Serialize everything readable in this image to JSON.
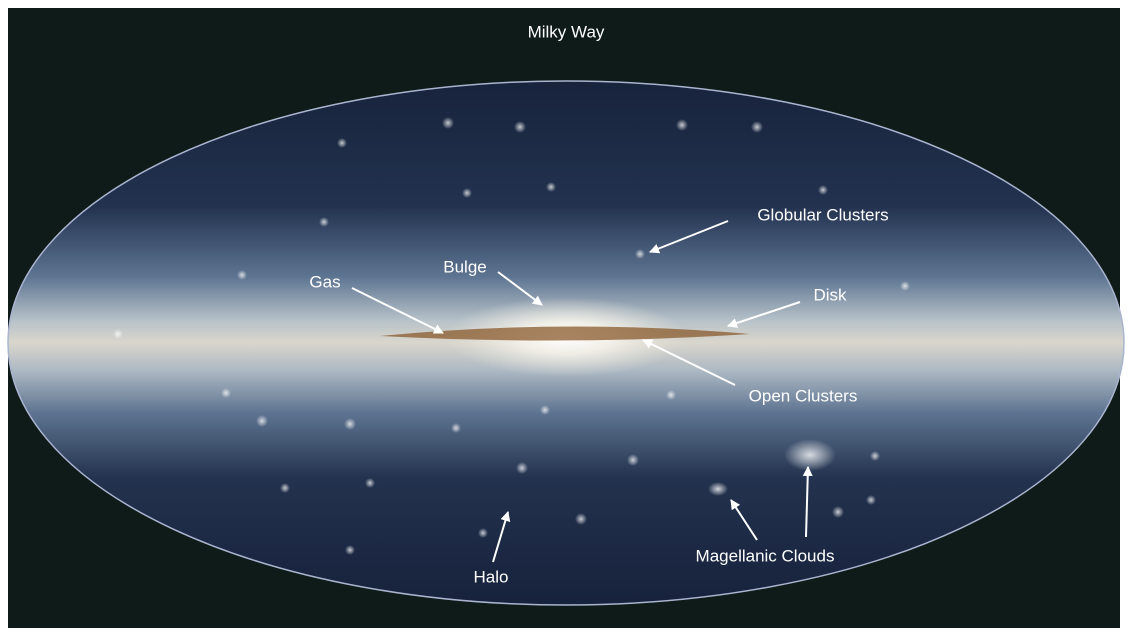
{
  "title": "Milky Way",
  "labels": {
    "globular_clusters": "Globular Clusters",
    "bulge": "Bulge",
    "gas": "Gas",
    "disk": "Disk",
    "open_clusters": "Open Clusters",
    "halo": "Halo",
    "magellanic_clouds": "Magellanic Clouds"
  }
}
